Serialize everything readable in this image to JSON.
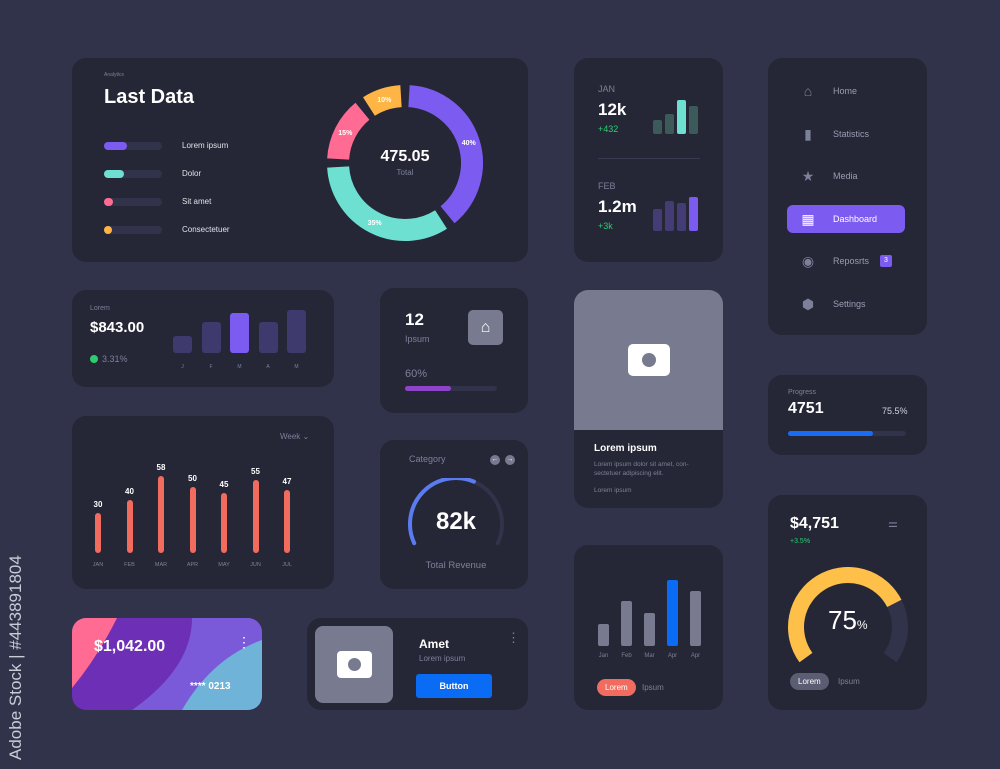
{
  "watermark": {
    "side_text": "Adobe Stock | #443891804",
    "text": "Adobe Stock"
  },
  "analytics": {
    "eyebrow": "Analytics",
    "title": "Last Data",
    "total_value": "475.05",
    "total_label": "Total",
    "legend": [
      {
        "label": "Lorem ipsum",
        "color": "#7c5cf0",
        "fill": 0.4
      },
      {
        "label": "Dolor",
        "color": "#6ee0d2",
        "fill": 0.35
      },
      {
        "label": "Sit amet",
        "color": "#ff6b93",
        "fill": 0.15
      },
      {
        "label": "Consectetuer",
        "color": "#ffb545",
        "fill": 0.1
      }
    ],
    "donut": [
      {
        "label": "40%",
        "value": 40,
        "color": "#7c5cf0"
      },
      {
        "label": "35%",
        "value": 35,
        "color": "#6ee0d2"
      },
      {
        "label": "15%",
        "value": 15,
        "color": "#ff6b93"
      },
      {
        "label": "10%",
        "value": 10,
        "color": "#ffb545"
      }
    ]
  },
  "months": [
    {
      "month": "JAN",
      "value": "12k",
      "change": "+432",
      "bars": [
        35,
        50,
        85,
        70
      ],
      "colors": [
        "#3d5a5a",
        "#3d5a5a",
        "#6ee0d2",
        "#3d5a5a"
      ]
    },
    {
      "month": "FEB",
      "value": "1.2m",
      "change": "+3k",
      "bars": [
        55,
        75,
        70,
        85
      ],
      "colors": [
        "#433c75",
        "#433c75",
        "#433c75",
        "#7c5cf0"
      ]
    }
  ],
  "nav": {
    "items": [
      {
        "label": "Home",
        "icon": "home-icon",
        "glyph": "⌂"
      },
      {
        "label": "Statistics",
        "icon": "bar-chart-icon",
        "glyph": "▮"
      },
      {
        "label": "Media",
        "icon": "star-icon",
        "glyph": "★"
      },
      {
        "label": "Dashboard",
        "icon": "dashboard-icon",
        "glyph": "▦",
        "active": true
      },
      {
        "label": "Reposrts",
        "icon": "circle-icon",
        "glyph": "◉",
        "badge": "3"
      },
      {
        "label": "Settings",
        "icon": "gear-icon",
        "glyph": "⬢"
      }
    ]
  },
  "balance": {
    "label": "Lorem",
    "value": "$843.00",
    "change": "3.31%",
    "categories": [
      "J",
      "F",
      "M",
      "A",
      "M"
    ],
    "values": [
      17,
      31,
      40,
      31,
      43
    ],
    "highlight": 2
  },
  "ipsum": {
    "value": "12",
    "label": "Ipsum",
    "percent_label": "60%",
    "progress": 0.6
  },
  "photo_card": {
    "title": "Lorem ipsum",
    "body": "Lorem ipsum dolor sit amet, con-sectetuer adipiscing elit.",
    "footer": "Lorem ipsum"
  },
  "progress": {
    "label": "Progress",
    "value": "4751",
    "percent_label": "75.5%",
    "progress": 0.755
  },
  "weekly": {
    "filter": "Week",
    "chart_data": {
      "type": "bar",
      "categories": [
        "JAN",
        "FEB",
        "MAR",
        "APR",
        "MAY",
        "JUN",
        "JUL"
      ],
      "values": [
        30,
        40,
        58,
        50,
        45,
        55,
        47
      ],
      "color": "#f26b5f"
    }
  },
  "category": {
    "title": "Category",
    "value": "82k",
    "label": "Total Revenue",
    "progress": 0.6
  },
  "gauge": {
    "value": "$4,751",
    "change": "+3.5%",
    "percent": "75",
    "percent_sign": "%",
    "progress": 0.75,
    "tabs": [
      "Lorem",
      "Ipsum"
    ]
  },
  "credit_card": {
    "amount": "$1,042.00",
    "number": "**** 0213"
  },
  "product": {
    "title": "Amet",
    "subtitle": "Lorem ipsum",
    "button": "Button"
  },
  "mini_chart": {
    "chart_data": {
      "type": "bar",
      "categories": [
        "Jan",
        "Feb",
        "Mar",
        "Apr",
        "Apr"
      ],
      "values": [
        22,
        45,
        33,
        66,
        55
      ],
      "highlight": 3
    },
    "tabs": [
      "Lorem",
      "Ipsum"
    ]
  }
}
